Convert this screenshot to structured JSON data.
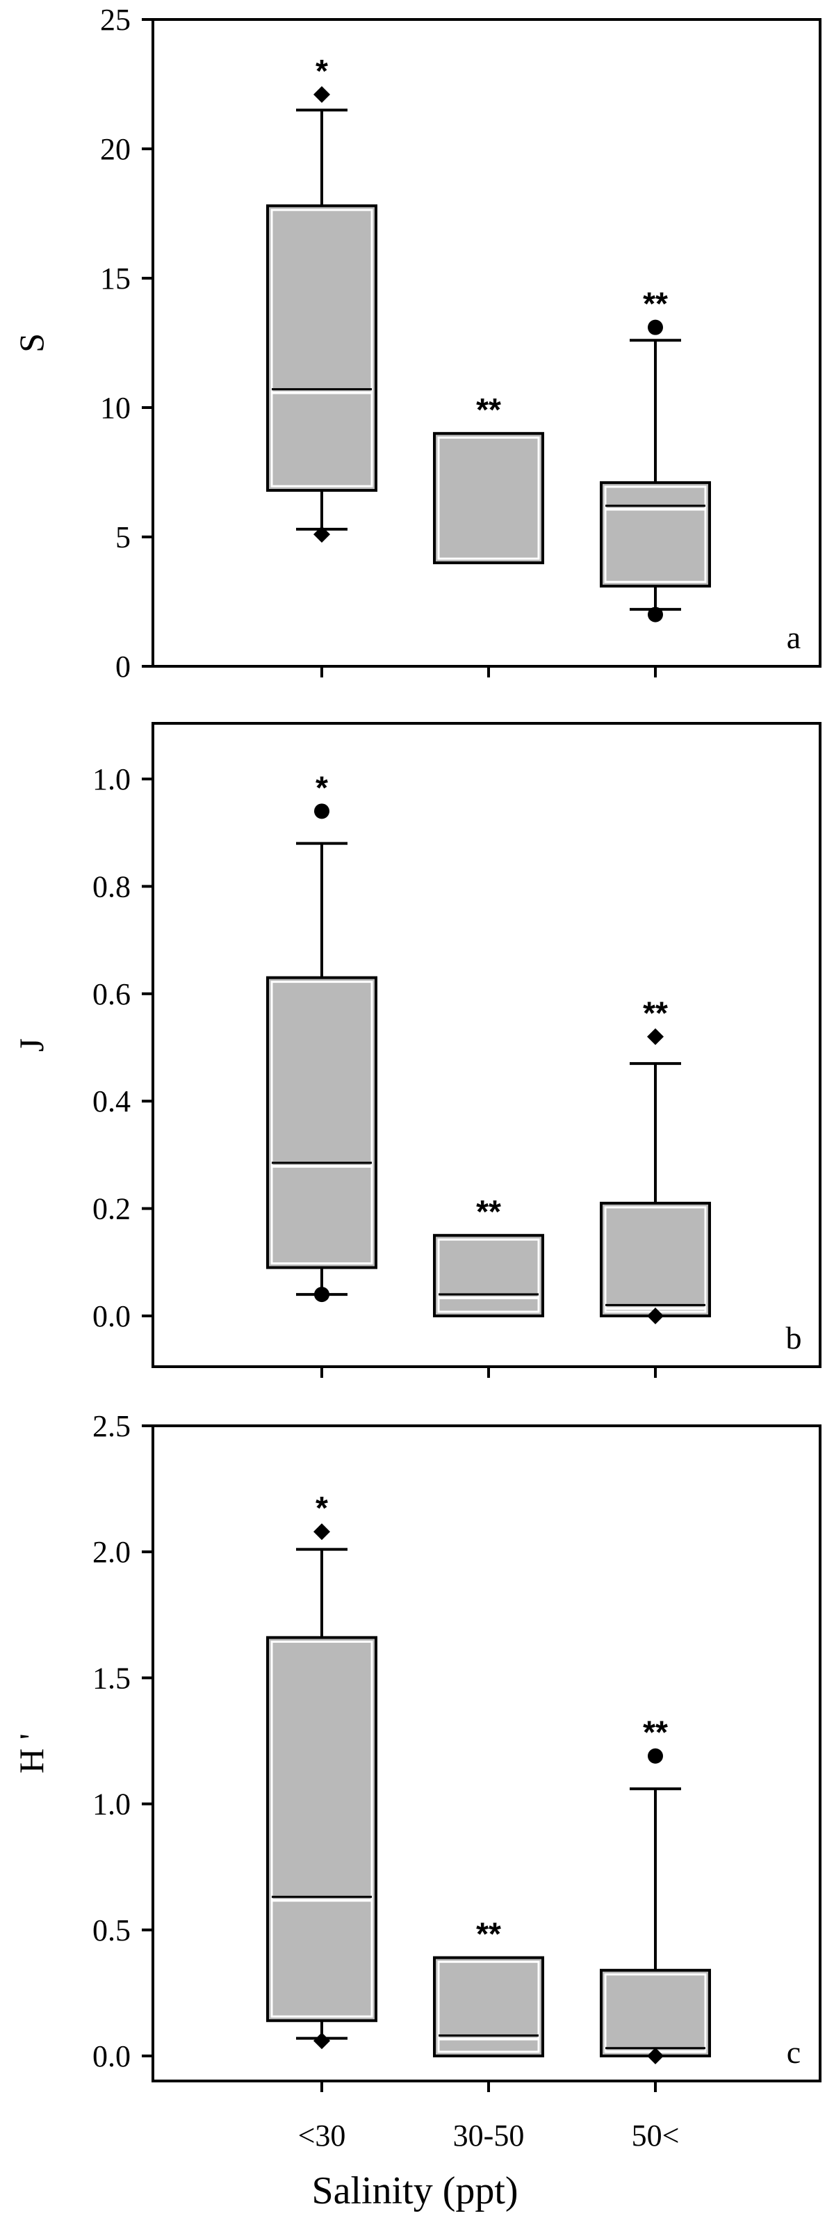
{
  "colors": {
    "box_fill": "#b9b9b9",
    "box_outline": "#000000",
    "inner_edge": "#ffffff",
    "axis": "#000000",
    "background": "#ffffff"
  },
  "icons": {
    "outlier_diamond": "diamond-marker",
    "outlier_circle": "circle-marker"
  },
  "chart_data": {
    "type": "box",
    "categories": [
      "<30",
      "30-50",
      "50<"
    ],
    "xlabel": "Salinity (ppt)",
    "grid": false,
    "panels": [
      {
        "letter": "a",
        "ylabel": "S",
        "ylim": [
          0,
          25
        ],
        "yticks": [
          "0",
          "5",
          "10",
          "15",
          "20",
          "25"
        ],
        "boxes": [
          {
            "category": "<30",
            "q1": 6.8,
            "median": 10.6,
            "q3": 17.8,
            "whisker_low": 5.3,
            "whisker_high": 21.5,
            "outliers": [
              {
                "value": 22.1,
                "marker": "diamond"
              },
              {
                "value": 5.1,
                "marker": "diamond"
              }
            ],
            "significance": "*"
          },
          {
            "category": "30-50",
            "q1": 4.0,
            "median": 9.0,
            "q3": 9.0,
            "whisker_low": null,
            "whisker_high": null,
            "outliers": [],
            "significance": "**"
          },
          {
            "category": "50<",
            "q1": 3.1,
            "median": 6.1,
            "q3": 7.1,
            "whisker_low": 2.2,
            "whisker_high": 12.6,
            "outliers": [
              {
                "value": 13.1,
                "marker": "circle"
              },
              {
                "value": 2.0,
                "marker": "circle"
              }
            ],
            "significance": "**"
          }
        ]
      },
      {
        "letter": "b",
        "ylabel": "J",
        "ylim": [
          -0.1,
          1.1
        ],
        "yticks": [
          "0.0",
          "0.2",
          "0.4",
          "0.6",
          "0.8",
          "1.0"
        ],
        "boxes": [
          {
            "category": "<30",
            "q1": 0.09,
            "median": 0.28,
            "q3": 0.63,
            "whisker_low": 0.04,
            "whisker_high": 0.88,
            "outliers": [
              {
                "value": 0.94,
                "marker": "circle"
              },
              {
                "value": 0.04,
                "marker": "circle"
              }
            ],
            "significance": "*"
          },
          {
            "category": "30-50",
            "q1": 0.0,
            "median": 0.035,
            "q3": 0.15,
            "whisker_low": null,
            "whisker_high": null,
            "outliers": [],
            "significance": "**"
          },
          {
            "category": "50<",
            "q1": 0.0,
            "median": 0.015,
            "q3": 0.21,
            "whisker_low": 0.0,
            "whisker_high": 0.47,
            "outliers": [
              {
                "value": 0.52,
                "marker": "diamond"
              },
              {
                "value": 0.0,
                "marker": "diamond"
              }
            ],
            "significance": "**"
          }
        ]
      },
      {
        "letter": "c",
        "ylabel": "H '",
        "ylim": [
          -0.1,
          2.5
        ],
        "yticks": [
          "0.0",
          "0.5",
          "1.0",
          "1.5",
          "2.0",
          "2.5"
        ],
        "boxes": [
          {
            "category": "<30",
            "q1": 0.14,
            "median": 0.62,
            "q3": 1.66,
            "whisker_low": 0.07,
            "whisker_high": 2.01,
            "outliers": [
              {
                "value": 2.08,
                "marker": "diamond"
              },
              {
                "value": 0.06,
                "marker": "diamond"
              }
            ],
            "significance": "*"
          },
          {
            "category": "30-50",
            "q1": 0.0,
            "median": 0.07,
            "q3": 0.39,
            "whisker_low": null,
            "whisker_high": null,
            "outliers": [],
            "significance": "**"
          },
          {
            "category": "50<",
            "q1": 0.0,
            "median": 0.02,
            "q3": 0.34,
            "whisker_low": 0.0,
            "whisker_high": 1.06,
            "outliers": [
              {
                "value": 1.19,
                "marker": "circle"
              },
              {
                "value": 0.0,
                "marker": "diamond"
              }
            ],
            "significance": "**"
          }
        ]
      }
    ]
  }
}
